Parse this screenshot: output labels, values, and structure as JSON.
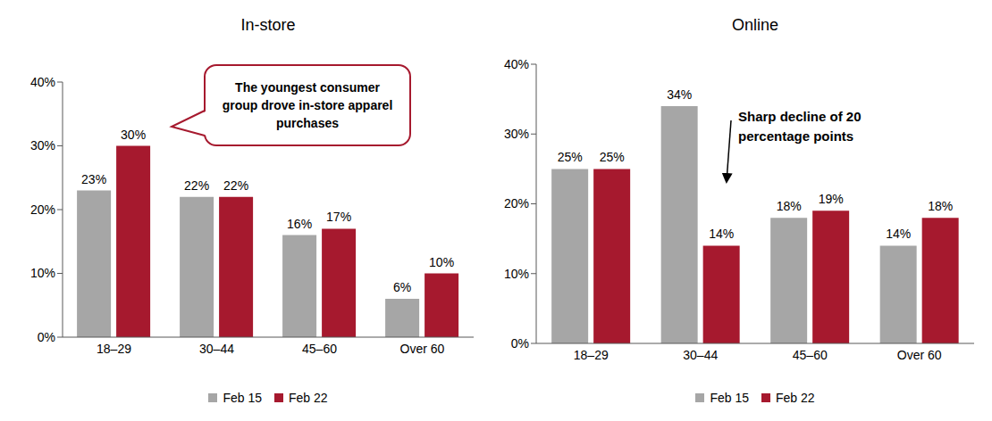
{
  "chart_data": [
    {
      "type": "bar",
      "title": "In-store",
      "categories": [
        "18–29",
        "30–44",
        "45–60",
        "Over 60"
      ],
      "series": [
        {
          "name": "Feb 15",
          "color": "#a6a6a6",
          "values": [
            23,
            22,
            16,
            6
          ],
          "value_labels": [
            "23%",
            "22%",
            "16%",
            "6%"
          ]
        },
        {
          "name": "Feb 22",
          "color": "#a6192e",
          "values": [
            30,
            22,
            17,
            10
          ],
          "value_labels": [
            "30%",
            "22%",
            "17%",
            "10%"
          ]
        }
      ],
      "ylim": [
        0,
        40
      ],
      "yticks": [
        {
          "value": 0,
          "label": "0%"
        },
        {
          "value": 10,
          "label": "10%"
        },
        {
          "value": 20,
          "label": "20%"
        },
        {
          "value": 30,
          "label": "30%"
        },
        {
          "value": 40,
          "label": "40%"
        }
      ],
      "grid": false,
      "legend": "bottom",
      "data_labels": true,
      "annotation": "The youngest consumer group drove in-store apparel purchases"
    },
    {
      "type": "bar",
      "title": "Online",
      "categories": [
        "18–29",
        "30–44",
        "45–60",
        "Over 60"
      ],
      "series": [
        {
          "name": "Feb 15",
          "color": "#a6a6a6",
          "values": [
            25,
            34,
            18,
            14
          ],
          "value_labels": [
            "25%",
            "34%",
            "18%",
            "14%"
          ]
        },
        {
          "name": "Feb 22",
          "color": "#a6192e",
          "values": [
            25,
            14,
            19,
            18
          ],
          "value_labels": [
            "25%",
            "14%",
            "19%",
            "18%"
          ]
        }
      ],
      "ylim": [
        0,
        40
      ],
      "yticks": [
        {
          "value": 0,
          "label": "0%"
        },
        {
          "value": 10,
          "label": "10%"
        },
        {
          "value": 20,
          "label": "20%"
        },
        {
          "value": 30,
          "label": "30%"
        },
        {
          "value": 40,
          "label": "40%"
        }
      ],
      "grid": false,
      "legend": "bottom",
      "data_labels": true,
      "annotation": "Sharp decline of 20 percentage points"
    }
  ]
}
